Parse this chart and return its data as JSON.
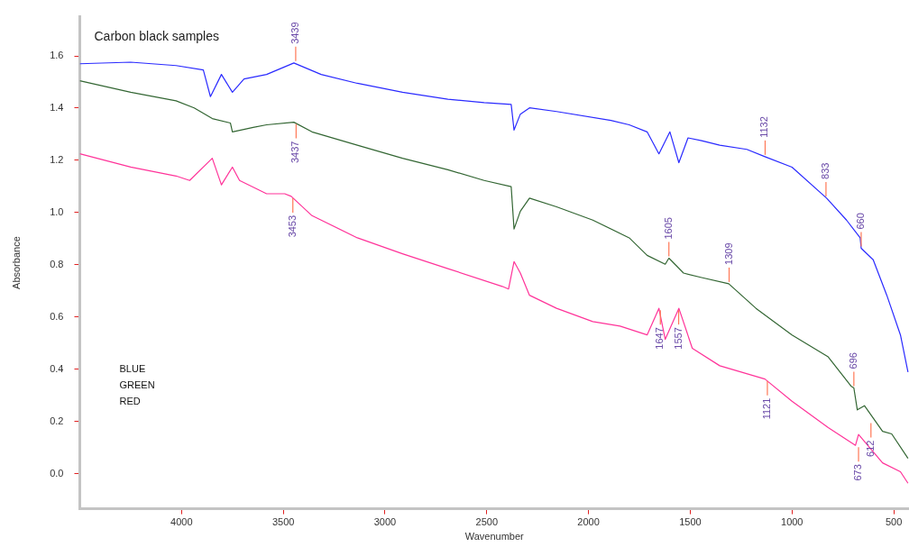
{
  "chart_data": {
    "type": "line",
    "title": "Carbon black samples",
    "xlabel": "Wavenumber",
    "ylabel": "Absorbance",
    "xlim": [
      4500,
      425
    ],
    "xticks": [
      4000,
      3500,
      3000,
      2500,
      2000,
      1500,
      1000,
      500
    ],
    "ylim": [
      -0.135,
      1.75
    ],
    "yticks": [
      {
        "value": 0,
        "label": "0.0"
      },
      {
        "value": 0.2,
        "label": "0.2"
      },
      {
        "value": 0.4,
        "label": "0.4"
      },
      {
        "value": 0.6,
        "label": "0.6"
      },
      {
        "value": 0.8,
        "label": "0.8"
      },
      {
        "value": 1,
        "label": "1.0"
      },
      {
        "value": 1.2,
        "label": "1.2"
      },
      {
        "value": 1.4,
        "label": "1.4"
      },
      {
        "value": 1.6,
        "label": "1.6"
      }
    ],
    "grid": false,
    "legend": false,
    "marker": "none",
    "line_style": "solid",
    "series": [
      {
        "color": "#2a2aff",
        "x": [
          4500,
          4250,
          4027,
          3893,
          3858,
          3804,
          3750,
          3693,
          3582,
          3448,
          3314,
          3136,
          2914,
          2691,
          2513,
          2380,
          2366,
          2335,
          2290,
          2157,
          1890,
          1800,
          1712,
          1654,
          1600,
          1556,
          1511,
          1444,
          1355,
          1222,
          1133,
          1000,
          830,
          732,
          665,
          660,
          601,
          534,
          467,
          430
        ],
        "values": [
          1.57,
          1.576,
          1.563,
          1.546,
          1.444,
          1.529,
          1.461,
          1.512,
          1.529,
          1.573,
          1.529,
          1.495,
          1.461,
          1.434,
          1.421,
          1.414,
          1.316,
          1.377,
          1.401,
          1.387,
          1.353,
          1.336,
          1.309,
          1.225,
          1.309,
          1.191,
          1.286,
          1.275,
          1.258,
          1.242,
          1.214,
          1.174,
          1.055,
          0.971,
          0.903,
          0.863,
          0.819,
          0.683,
          0.531,
          0.389
        ]
      },
      {
        "color": "#336633",
        "x": [
          4500,
          4250,
          4027,
          3938,
          3849,
          3760,
          3750,
          3648,
          3582,
          3448,
          3359,
          3136,
          2914,
          2691,
          2513,
          2380,
          2366,
          2335,
          2290,
          2157,
          1979,
          1800,
          1712,
          1623,
          1605,
          1533,
          1444,
          1311,
          1177,
          1000,
          822,
          710,
          696,
          679,
          644,
          555,
          510,
          430
        ],
        "values": [
          1.505,
          1.461,
          1.428,
          1.401,
          1.36,
          1.343,
          1.309,
          1.326,
          1.336,
          1.346,
          1.309,
          1.258,
          1.208,
          1.164,
          1.123,
          1.099,
          0.937,
          1.005,
          1.055,
          1.022,
          0.971,
          0.903,
          0.836,
          0.802,
          0.825,
          0.768,
          0.751,
          0.727,
          0.633,
          0.531,
          0.447,
          0.335,
          0.328,
          0.244,
          0.26,
          0.162,
          0.152,
          0.058
        ]
      },
      {
        "color": "#ff3399",
        "x": [
          4500,
          4250,
          4027,
          3960,
          3849,
          3804,
          3750,
          3715,
          3582,
          3493,
          3461,
          3359,
          3136,
          2914,
          2691,
          2424,
          2393,
          2366,
          2335,
          2290,
          2157,
          1979,
          1845,
          1712,
          1654,
          1623,
          1556,
          1490,
          1355,
          1133,
          1000,
          822,
          688,
          673,
          555,
          467,
          430
        ],
        "values": [
          1.225,
          1.174,
          1.14,
          1.123,
          1.208,
          1.106,
          1.174,
          1.123,
          1.072,
          1.072,
          1.062,
          0.988,
          0.903,
          0.842,
          0.785,
          0.717,
          0.707,
          0.812,
          0.768,
          0.683,
          0.633,
          0.582,
          0.565,
          0.531,
          0.633,
          0.514,
          0.633,
          0.48,
          0.413,
          0.362,
          0.277,
          0.176,
          0.108,
          0.15,
          0.041,
          0.007,
          -0.037
        ]
      }
    ],
    "annotations": [
      {
        "text": "3439",
        "x": 3439,
        "y": 1.573
      },
      {
        "text": "3437",
        "x": 3437,
        "y": 1.346
      },
      {
        "text": "3453",
        "x": 3453,
        "y": 1.062
      },
      {
        "text": "1132",
        "x": 1132,
        "y": 1.214
      },
      {
        "text": "833",
        "x": 833,
        "y": 1.055
      },
      {
        "text": "660",
        "x": 660,
        "y": 0.863
      },
      {
        "text": "1605",
        "x": 1605,
        "y": 0.825
      },
      {
        "text": "1309",
        "x": 1309,
        "y": 0.727
      },
      {
        "text": "1647",
        "x": 1647,
        "y": 0.633
      },
      {
        "text": "1557",
        "x": 1557,
        "y": 0.633
      },
      {
        "text": "1121",
        "x": 1121,
        "y": 0.362
      },
      {
        "text": "696",
        "x": 696,
        "y": 0.328
      },
      {
        "text": "612",
        "x": 612,
        "y": 0.2
      },
      {
        "text": "673",
        "x": 673,
        "y": 0.108
      },
      "BLUE",
      "GREEN",
      "RED"
    ]
  }
}
